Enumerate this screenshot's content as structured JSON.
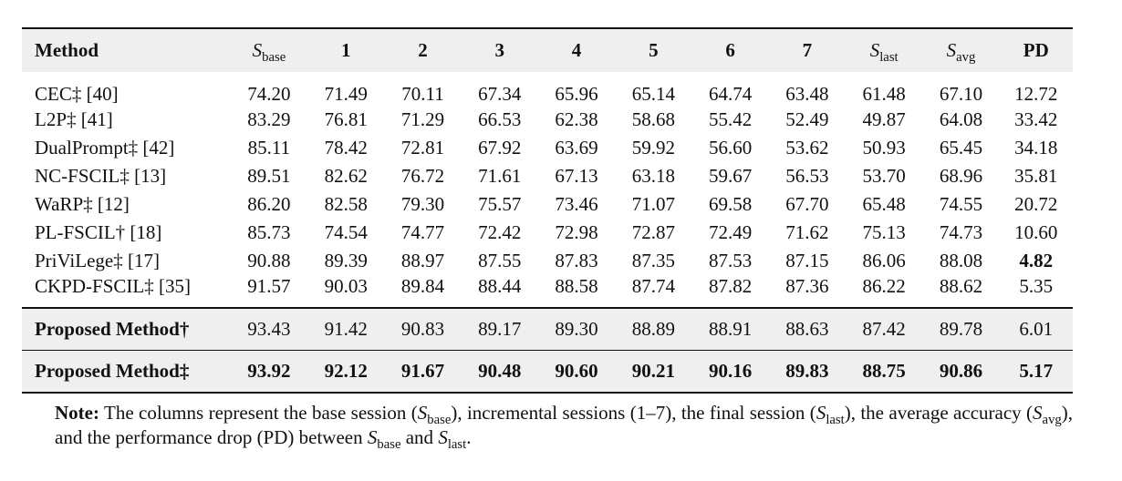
{
  "header": [
    "Method",
    "S_base",
    "1",
    "2",
    "3",
    "4",
    "5",
    "6",
    "7",
    "S_last",
    "S_avg",
    "PD"
  ],
  "rows": [
    {
      "method": "CEC‡ [40]",
      "values": [
        "74.20",
        "71.49",
        "70.11",
        "67.34",
        "65.96",
        "65.14",
        "64.74",
        "63.48",
        "61.48",
        "67.10",
        "12.72"
      ]
    },
    {
      "method": "L2P‡ [41]",
      "values": [
        "83.29",
        "76.81",
        "71.29",
        "66.53",
        "62.38",
        "58.68",
        "55.42",
        "52.49",
        "49.87",
        "64.08",
        "33.42"
      ]
    },
    {
      "method": "DualPrompt‡ [42]",
      "values": [
        "85.11",
        "78.42",
        "72.81",
        "67.92",
        "63.69",
        "59.92",
        "56.60",
        "53.62",
        "50.93",
        "65.45",
        "34.18"
      ]
    },
    {
      "method": "NC-FSCIL‡ [13]",
      "values": [
        "89.51",
        "82.62",
        "76.72",
        "71.61",
        "67.13",
        "63.18",
        "59.67",
        "56.53",
        "53.70",
        "68.96",
        "35.81"
      ]
    },
    {
      "method": "WaRP‡ [12]",
      "values": [
        "86.20",
        "82.58",
        "79.30",
        "75.57",
        "73.46",
        "71.07",
        "69.58",
        "67.70",
        "65.48",
        "74.55",
        "20.72"
      ]
    },
    {
      "method": "PL-FSCIL† [18]",
      "values": [
        "85.73",
        "74.54",
        "74.77",
        "72.42",
        "72.98",
        "72.87",
        "72.49",
        "71.62",
        "75.13",
        "74.73",
        "10.60"
      ]
    },
    {
      "method": "PriViLege‡ [17]",
      "values": [
        "90.88",
        "89.39",
        "88.97",
        "87.55",
        "87.83",
        "87.35",
        "87.53",
        "87.15",
        "86.06",
        "88.08",
        "4.82"
      ]
    },
    {
      "method": "CKPD-FSCIL‡ [35]",
      "values": [
        "91.57",
        "90.03",
        "89.84",
        "88.44",
        "88.58",
        "87.74",
        "87.82",
        "87.36",
        "86.22",
        "88.62",
        "5.35"
      ]
    }
  ],
  "proposed": [
    {
      "method": "Proposed Method†",
      "values": [
        "93.43",
        "91.42",
        "90.83",
        "89.17",
        "89.30",
        "88.89",
        "88.91",
        "88.63",
        "87.42",
        "89.78",
        "6.01"
      ]
    },
    {
      "method": "Proposed Method‡",
      "values": [
        "93.92",
        "92.12",
        "91.67",
        "90.48",
        "90.60",
        "90.21",
        "90.16",
        "89.83",
        "88.75",
        "90.86",
        "5.17"
      ]
    }
  ],
  "note": {
    "lead": "Note:",
    "t1": " The columns represent the base session (",
    "t2": "), incremental sessions (1–7), the final session (",
    "t3": "), the average accuracy (",
    "t4": "), and the performance drop (PD) between ",
    "t5": " and ",
    "t6": "."
  }
}
